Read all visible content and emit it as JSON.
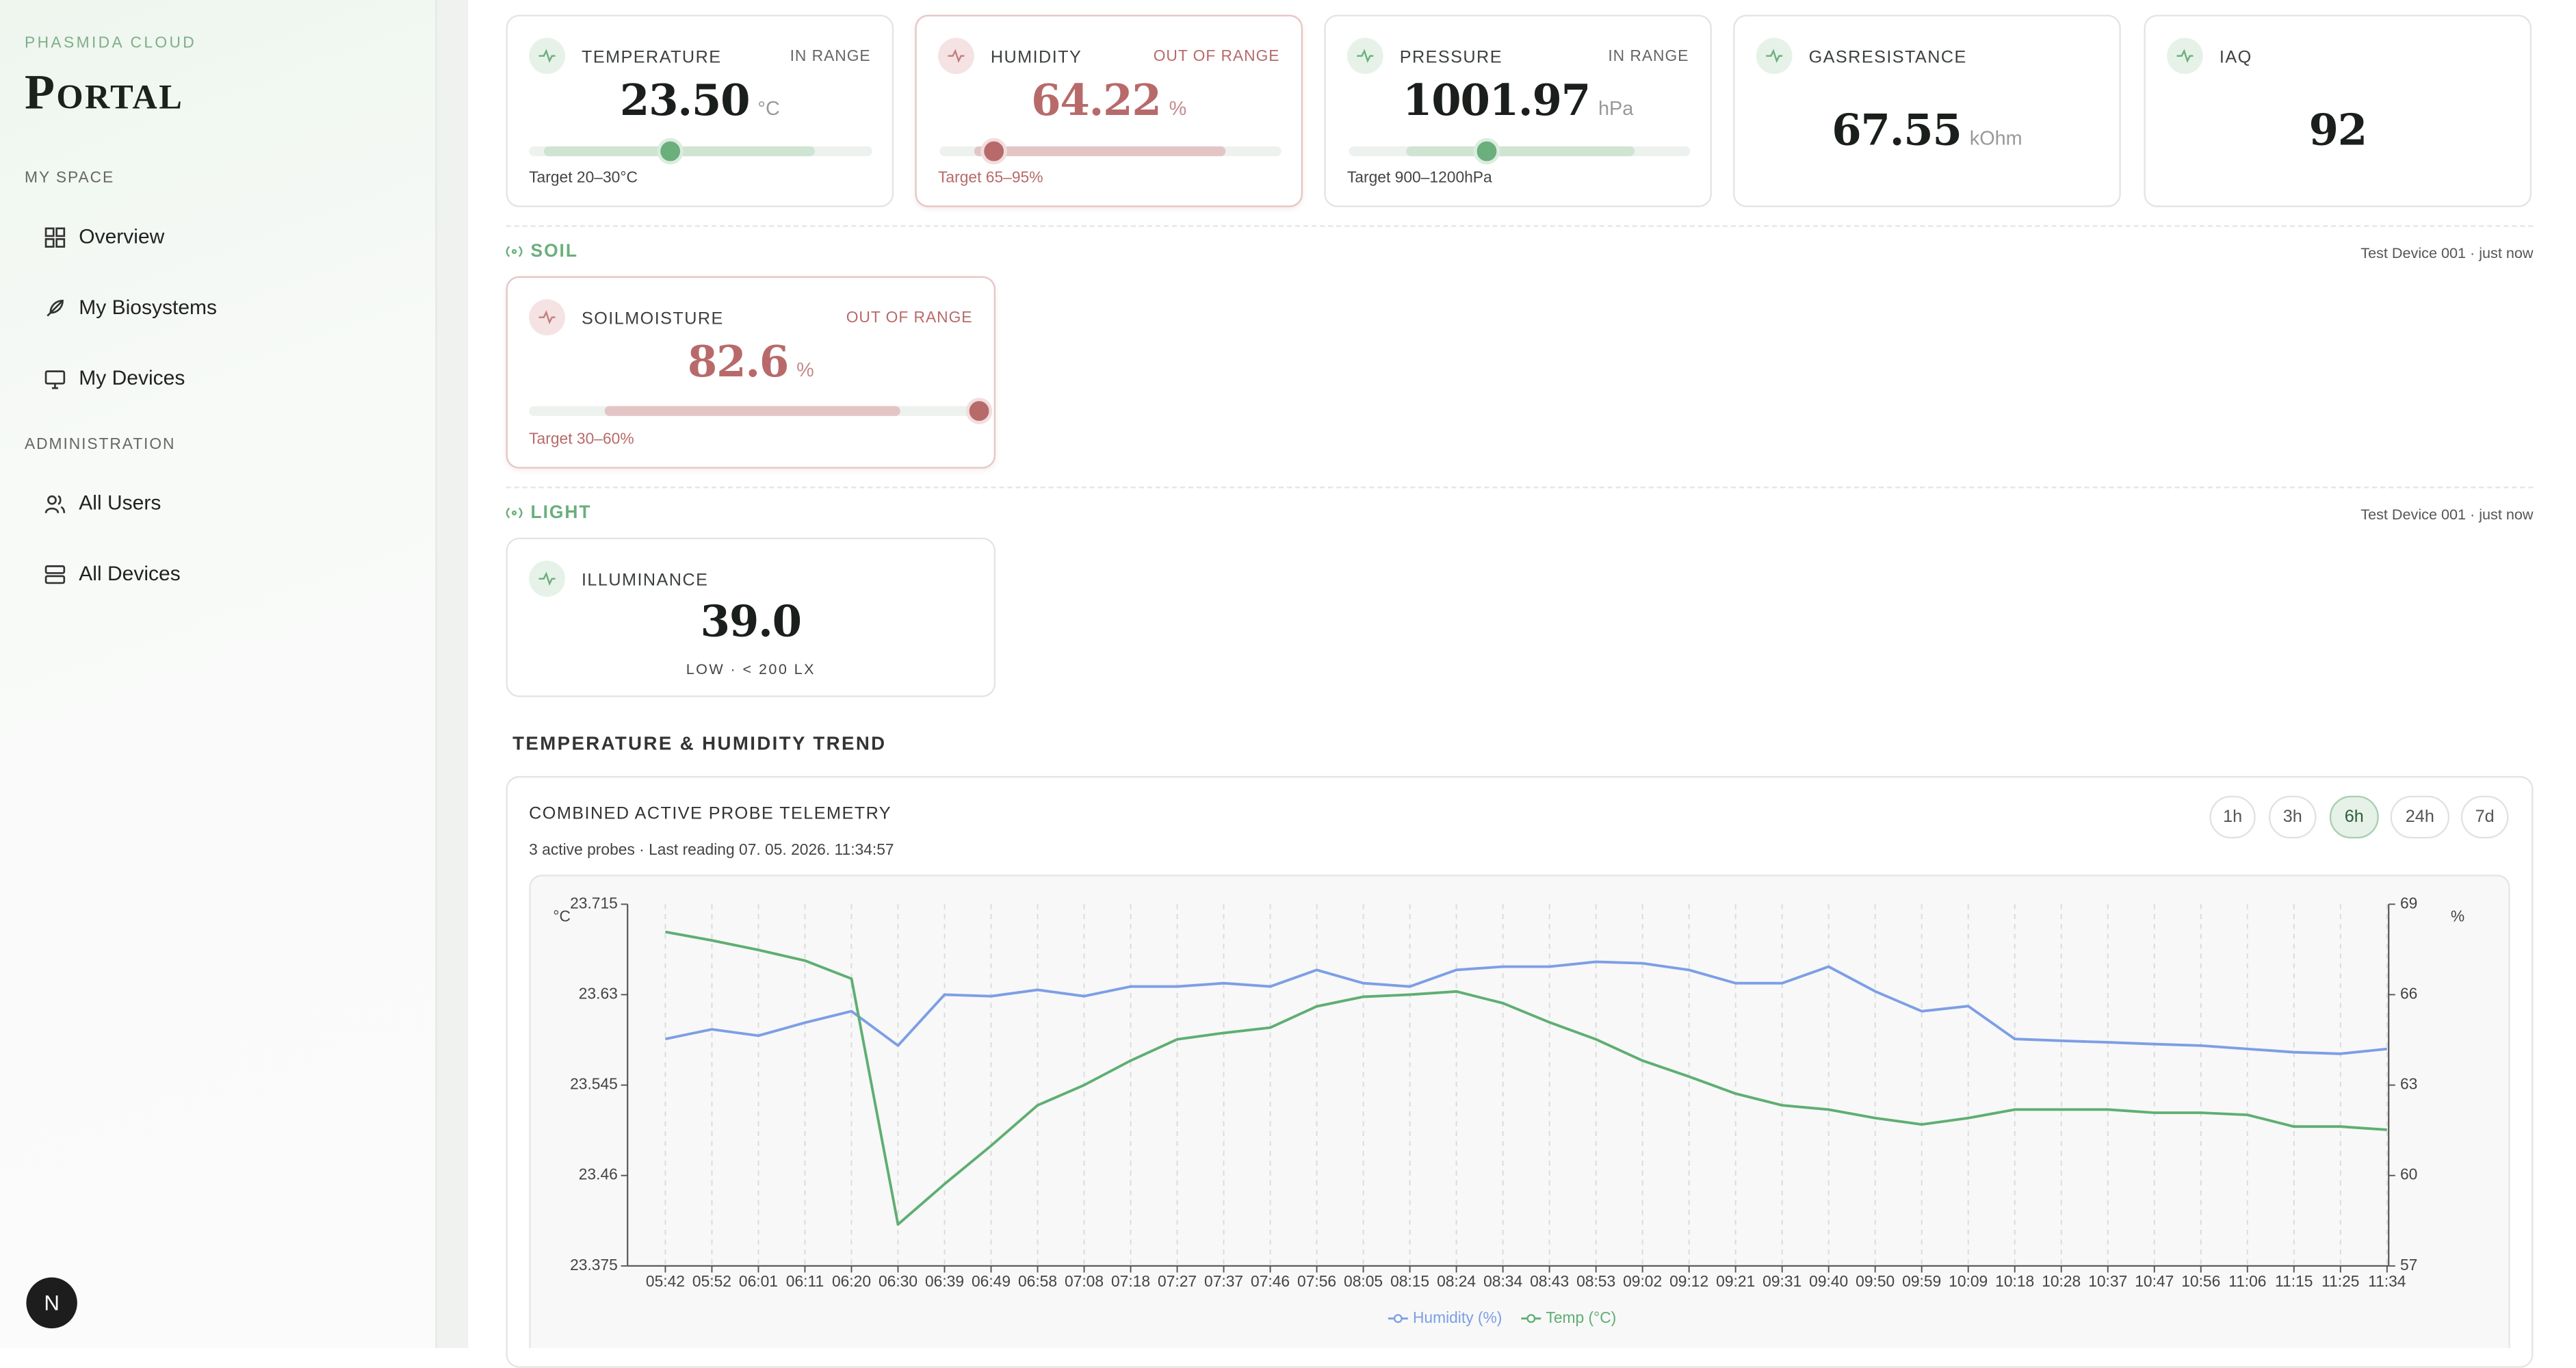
{
  "sidebar": {
    "brand_sub": "PHASMIDA CLOUD",
    "brand": "Portal",
    "sections": [
      {
        "title": "MY SPACE",
        "items": [
          "Overview",
          "My Biosystems",
          "My Devices"
        ]
      },
      {
        "title": "ADMINISTRATION",
        "items": [
          "All Users",
          "All Devices"
        ]
      }
    ],
    "avatar": "N"
  },
  "cards": [
    {
      "label": "TEMPERATURE",
      "status": "IN RANGE",
      "value": "23.50",
      "unit": "°C",
      "target": "Target 20–30°C"
    },
    {
      "label": "HUMIDITY",
      "status": "OUT OF RANGE",
      "value": "64.22",
      "unit": "%",
      "target": "Target 65–95%"
    },
    {
      "label": "PRESSURE",
      "status": "IN RANGE",
      "value": "1001.97",
      "unit": "hPa",
      "target": "Target 900–1200hPa"
    },
    {
      "label": "GASRESISTANCE",
      "value": "67.55",
      "unit": "kOhm"
    },
    {
      "label": "IAQ",
      "value": "92"
    }
  ],
  "sections": [
    {
      "title": "SOIL",
      "meta": "Test Device 001 · just now",
      "card": {
        "label": "SOILMOISTURE",
        "status": "OUT OF RANGE",
        "value": "82.6",
        "unit": "%",
        "target": "Target 30–60%"
      }
    },
    {
      "title": "LIGHT",
      "meta": "Test Device 001 · just now",
      "card": {
        "label": "ILLUMINANCE",
        "value": "39.0",
        "note": "LOW · < 200 LX"
      }
    }
  ],
  "trend": {
    "heading": "TEMPERATURE & HUMIDITY TREND",
    "panel_title": "COMBINED ACTIVE PROBE TELEMETRY",
    "panel_subtitle": "3 active probes · Last reading 07. 05. 2026. 11:34:57",
    "ranges": [
      "1h",
      "3h",
      "6h",
      "24h",
      "7d"
    ]
  },
  "chart_data": {
    "type": "line",
    "categories": [
      "05:42",
      "05:52",
      "06:01",
      "06:11",
      "06:20",
      "06:30",
      "06:39",
      "06:49",
      "06:58",
      "07:08",
      "07:18",
      "07:27",
      "07:37",
      "07:46",
      "07:56",
      "08:05",
      "08:15",
      "08:24",
      "08:34",
      "08:43",
      "08:53",
      "09:02",
      "09:12",
      "09:21",
      "09:31",
      "09:40",
      "09:50",
      "09:59",
      "10:09",
      "10:18",
      "10:28",
      "10:37",
      "10:47",
      "10:56",
      "11:06",
      "11:15",
      "11:25",
      "11:34"
    ],
    "series": [
      {
        "name": "Humidity (%)",
        "color": "#7d9ee6",
        "axis": "y2",
        "values": [
          64.53,
          64.85,
          64.64,
          65.07,
          65.45,
          64.31,
          66.0,
          65.95,
          66.16,
          65.95,
          66.27,
          66.27,
          66.38,
          66.27,
          66.82,
          66.38,
          66.27,
          66.82,
          66.93,
          66.93,
          67.09,
          67.04,
          66.82,
          66.38,
          66.38,
          66.93,
          66.11,
          65.45,
          65.62,
          64.53,
          64.47,
          64.42,
          64.36,
          64.31,
          64.2,
          64.09,
          64.04,
          64.2
        ]
      },
      {
        "name": "Temp (°C)",
        "color": "#5fae72",
        "values": [
          23.689,
          23.681,
          23.672,
          23.662,
          23.645,
          23.414,
          23.452,
          23.488,
          23.526,
          23.545,
          23.568,
          23.588,
          23.594,
          23.599,
          23.619,
          23.628,
          23.63,
          23.633,
          23.622,
          23.604,
          23.588,
          23.568,
          23.553,
          23.537,
          23.526,
          23.522,
          23.514,
          23.508,
          23.514,
          23.522,
          23.522,
          23.522,
          23.519,
          23.519,
          23.517,
          23.506,
          23.506,
          23.503
        ]
      }
    ],
    "ylabel": "°C",
    "y2label": "%",
    "ylim": [
      23.375,
      23.715
    ],
    "yticks": [
      23.375,
      23.46,
      23.545,
      23.63,
      23.715
    ],
    "y2lim": [
      57,
      69
    ],
    "y2ticks": [
      57,
      60,
      63,
      66,
      69
    ],
    "grid": true
  }
}
